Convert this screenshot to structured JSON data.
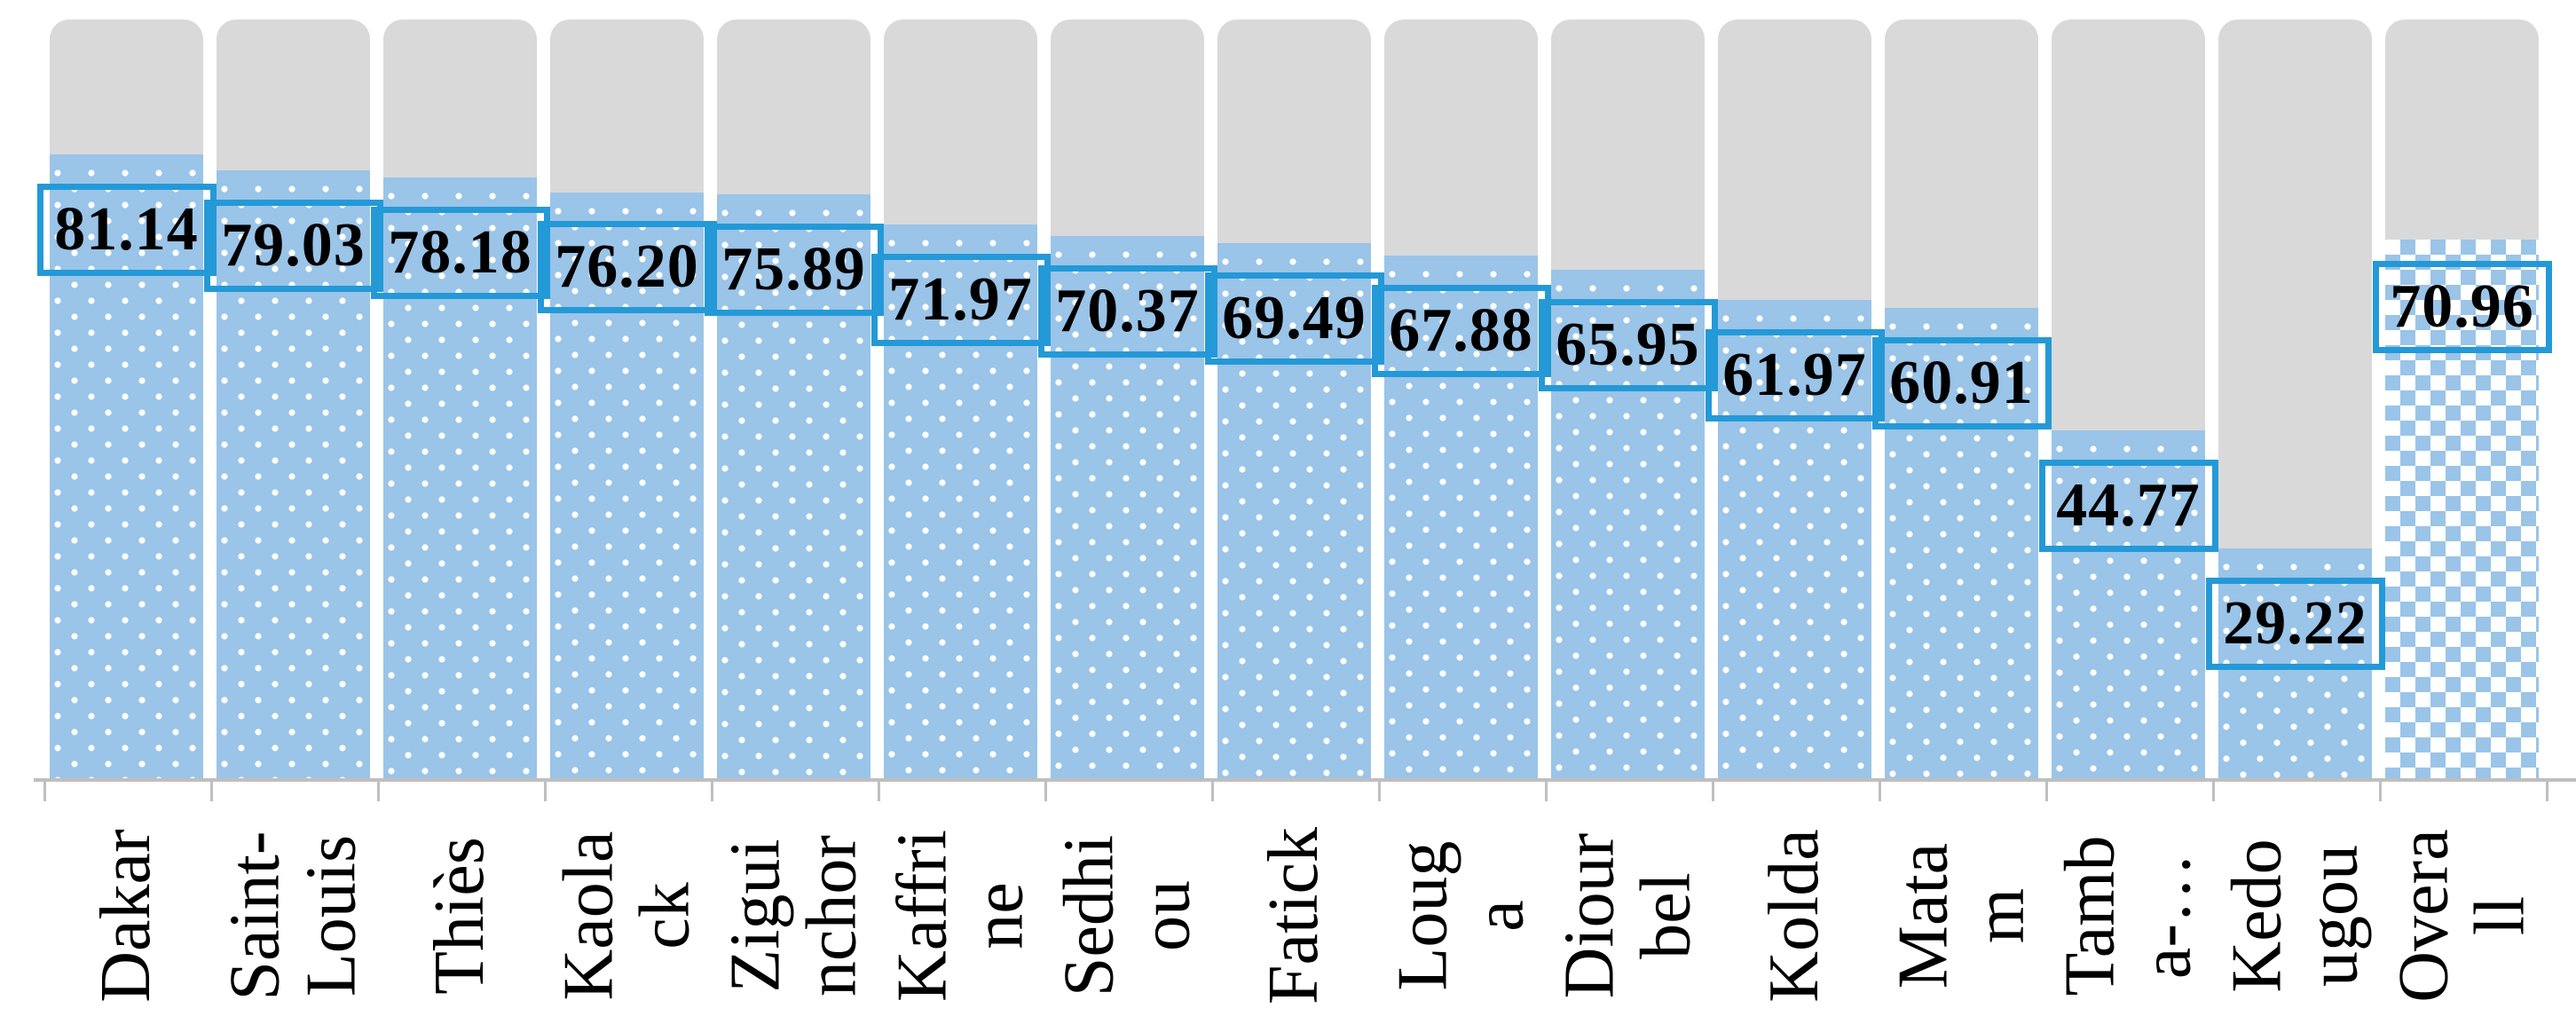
{
  "chart_data": {
    "type": "bar",
    "title": "",
    "xlabel": "",
    "ylabel": "",
    "ylim": [
      0,
      100
    ],
    "grid": false,
    "legend": "none",
    "background_track_value": 100,
    "note": "Each column shows a patterned blue bar (value) in front of a gray rounded-top track representing 100; value labels sit in blue-framed boxes near each bar top; category labels are rotated 90deg CCW below the axis.",
    "categories": [
      "Dakar",
      "Saint-Louis",
      "Thiès",
      "Kaolack",
      "Ziguinchor",
      "Kaffrine",
      "Sedhiou",
      "Fatick",
      "Louga",
      "Diourbel",
      "Kolda",
      "Matam",
      "Tamba-…",
      "Kedougou",
      "Overall"
    ],
    "values": [
      81.14,
      79.03,
      78.18,
      76.2,
      75.89,
      71.97,
      70.37,
      69.49,
      67.88,
      65.95,
      61.97,
      60.91,
      44.77,
      29.22,
      70.96
    ],
    "bars": [
      {
        "label": "Dakar",
        "value": 81.14,
        "value_label": "81.14",
        "pattern": "dots"
      },
      {
        "label": "Saint-\nLouis",
        "value": 79.03,
        "value_label": "79.03",
        "pattern": "dots"
      },
      {
        "label": "Thiès",
        "value": 78.18,
        "value_label": "78.18",
        "pattern": "dots"
      },
      {
        "label": "Kaola\nck",
        "value": 76.2,
        "value_label": "76.20",
        "pattern": "dots"
      },
      {
        "label": "Zigui\nnchor",
        "value": 75.89,
        "value_label": "75.89",
        "pattern": "dots"
      },
      {
        "label": "Kaffri\nne",
        "value": 71.97,
        "value_label": "71.97",
        "pattern": "dots"
      },
      {
        "label": "Sedhi\nou",
        "value": 70.37,
        "value_label": "70.37",
        "pattern": "dots"
      },
      {
        "label": "Fatick",
        "value": 69.49,
        "value_label": "69.49",
        "pattern": "dots"
      },
      {
        "label": "Loug\na",
        "value": 67.88,
        "value_label": "67.88",
        "pattern": "dots"
      },
      {
        "label": "Diour\nbel",
        "value": 65.95,
        "value_label": "65.95",
        "pattern": "dots"
      },
      {
        "label": "Kolda",
        "value": 61.97,
        "value_label": "61.97",
        "pattern": "dots"
      },
      {
        "label": "Mata\nm",
        "value": 60.91,
        "value_label": "60.91",
        "pattern": "dots"
      },
      {
        "label": "Tamb\na-…",
        "value": 44.77,
        "value_label": "44.77",
        "pattern": "dots"
      },
      {
        "label": "Kedo\nugou",
        "value": 29.22,
        "value_label": "29.22",
        "pattern": "dots"
      },
      {
        "label": "Overa\nll",
        "value": 70.96,
        "value_label": "70.96",
        "pattern": "checker"
      }
    ]
  },
  "colors": {
    "bar_fill_blue": "#9AC4E8",
    "bar_track_gray": "#D9D9D9",
    "label_frame_blue": "#2499D7",
    "axis_gray": "#BFBFBF",
    "text": "#000000",
    "pattern_dot": "#FFFFFF"
  }
}
